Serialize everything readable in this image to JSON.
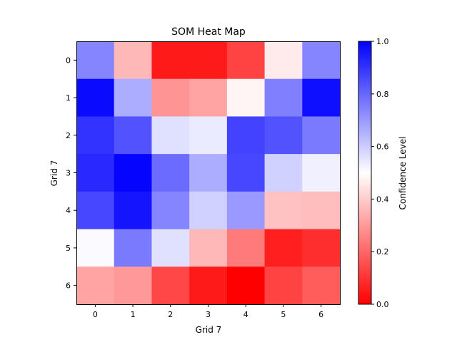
{
  "chart_data": {
    "type": "heatmap",
    "title": "SOM Heat Map",
    "xlabel": "Grid 7",
    "ylabel": "Grid 7",
    "x_ticks": [
      "0",
      "1",
      "2",
      "3",
      "4",
      "5",
      "6"
    ],
    "y_ticks": [
      "0",
      "1",
      "2",
      "3",
      "4",
      "5",
      "6"
    ],
    "matrix": [
      [
        0.74,
        0.36,
        0.05,
        0.05,
        0.13,
        0.46,
        0.74
      ],
      [
        0.98,
        0.66,
        0.29,
        0.32,
        0.48,
        0.75,
        0.97
      ],
      [
        0.9,
        0.84,
        0.56,
        0.54,
        0.87,
        0.84,
        0.76
      ],
      [
        0.92,
        0.99,
        0.79,
        0.66,
        0.86,
        0.59,
        0.53
      ],
      [
        0.86,
        0.96,
        0.74,
        0.59,
        0.7,
        0.38,
        0.37
      ],
      [
        0.51,
        0.76,
        0.56,
        0.36,
        0.24,
        0.06,
        0.09
      ],
      [
        0.32,
        0.3,
        0.14,
        0.05,
        0.0,
        0.13,
        0.18
      ]
    ],
    "colormap": "bwr_r",
    "vmin": 0.0,
    "vmax": 1.0,
    "colorbar": {
      "label": "Confidence Level",
      "ticks": [
        "0.0",
        "0.2",
        "0.4",
        "0.6",
        "0.8",
        "1.0"
      ],
      "tick_values": [
        0.0,
        0.2,
        0.4,
        0.6,
        0.8,
        1.0
      ]
    },
    "colors": {
      "low": "#ff0000",
      "mid": "#ffffff",
      "high": "#0000ff"
    }
  }
}
